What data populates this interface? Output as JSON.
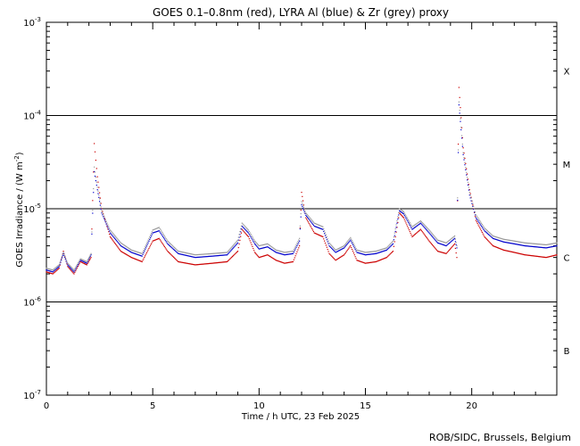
{
  "chart_data": {
    "type": "scatter",
    "title": "GOES 0.1–0.8nm (red), LYRA Al (blue) & Zr (grey) proxy",
    "xlabel": "Time / h UTC, 23 Feb 2025",
    "ylabel": "GOES Irradiance / (W m",
    "ylabel_sup": "-2",
    "ylabel_close": ")",
    "xlim": [
      0,
      24
    ],
    "ylim": [
      1e-07,
      0.001
    ],
    "yscale": "log",
    "x_ticks": [
      {
        "value": 0,
        "label": "0"
      },
      {
        "value": 5,
        "label": "5"
      },
      {
        "value": 10,
        "label": "10"
      },
      {
        "value": 15,
        "label": "15"
      },
      {
        "value": 20,
        "label": "20"
      }
    ],
    "y_ticks": [
      {
        "value": 0.001,
        "base": "10",
        "exp": "-3"
      },
      {
        "value": 0.0001,
        "base": "10",
        "exp": "-4"
      },
      {
        "value": 1e-05,
        "base": "10",
        "exp": "-5"
      },
      {
        "value": 1e-06,
        "base": "10",
        "exp": "-6"
      },
      {
        "value": 1e-07,
        "base": "10",
        "exp": "-7"
      }
    ],
    "flare_class_lines": [
      0.0001,
      1e-05,
      1e-06
    ],
    "flare_classes": [
      {
        "label": "X",
        "value": 0.0003
      },
      {
        "label": "M",
        "value": 3e-05
      },
      {
        "label": "C",
        "value": 3e-06
      },
      {
        "label": "B",
        "value": 3e-07
      }
    ],
    "series": [
      {
        "color": "#cc0000",
        "x": [
          0,
          0.3,
          0.6,
          0.8,
          1.0,
          1.3,
          1.6,
          1.9,
          2.1,
          2.25,
          2.4,
          2.6,
          3.0,
          3.5,
          4.0,
          4.5,
          5.0,
          5.3,
          5.7,
          6.2,
          7.0,
          7.8,
          8.5,
          9.0,
          9.2,
          9.5,
          9.8,
          10.0,
          10.4,
          10.8,
          11.2,
          11.6,
          11.9,
          12.0,
          12.2,
          12.6,
          13.0,
          13.3,
          13.6,
          14.0,
          14.3,
          14.6,
          15.0,
          15.5,
          16.0,
          16.3,
          16.6,
          16.8,
          17.2,
          17.6,
          18.0,
          18.4,
          18.8,
          19.2,
          19.3,
          19.4,
          19.6,
          19.9,
          20.2,
          20.6,
          21.0,
          21.5,
          22.0,
          22.5,
          23.0,
          23.5,
          24.0
        ],
        "y": [
          2.1e-06,
          2e-06,
          2.3e-06,
          3.5e-06,
          2.4e-06,
          2e-06,
          2.7e-06,
          2.5e-06,
          3e-06,
          5e-05,
          2.2e-05,
          1e-05,
          5e-06,
          3.5e-06,
          3e-06,
          2.7e-06,
          4.5e-06,
          4.8e-06,
          3.5e-06,
          2.7e-06,
          2.5e-06,
          2.6e-06,
          2.7e-06,
          3.5e-06,
          6e-06,
          5e-06,
          3.4e-06,
          3e-06,
          3.2e-06,
          2.8e-06,
          2.6e-06,
          2.7e-06,
          4e-06,
          1.5e-05,
          8e-06,
          5.5e-06,
          5e-06,
          3.3e-06,
          2.8e-06,
          3.2e-06,
          4e-06,
          2.8e-06,
          2.6e-06,
          2.7e-06,
          3e-06,
          3.5e-06,
          9e-06,
          8e-06,
          5e-06,
          6e-06,
          4.5e-06,
          3.5e-06,
          3.3e-06,
          4.2e-06,
          3e-06,
          0.0002,
          4.5e-05,
          1.6e-05,
          7.5e-06,
          5e-06,
          4e-06,
          3.6e-06,
          3.4e-06,
          3.2e-06,
          3.1e-06,
          3e-06,
          3.2e-06
        ]
      },
      {
        "color": "#0000cc",
        "x": [
          0,
          0.3,
          0.6,
          0.8,
          1.0,
          1.3,
          1.6,
          1.9,
          2.1,
          2.25,
          2.4,
          2.6,
          3.0,
          3.5,
          4.0,
          4.5,
          5.0,
          5.3,
          5.7,
          6.2,
          7.0,
          7.8,
          8.5,
          9.0,
          9.2,
          9.5,
          9.8,
          10.0,
          10.4,
          10.8,
          11.2,
          11.6,
          11.9,
          12.0,
          12.2,
          12.6,
          13.0,
          13.3,
          13.6,
          14.0,
          14.3,
          14.6,
          15.0,
          15.5,
          16.0,
          16.3,
          16.6,
          16.8,
          17.2,
          17.6,
          18.0,
          18.4,
          18.8,
          19.2,
          19.3,
          19.4,
          19.6,
          19.9,
          20.2,
          20.6,
          21.0,
          21.5,
          22.0,
          22.5,
          23.0,
          23.5,
          24.0
        ],
        "y": [
          2.2e-06,
          2.1e-06,
          2.4e-06,
          3.3e-06,
          2.5e-06,
          2.1e-06,
          2.8e-06,
          2.6e-06,
          3.2e-06,
          2.5e-05,
          1.6e-05,
          9e-06,
          5.5e-06,
          4e-06,
          3.4e-06,
          3.1e-06,
          5.5e-06,
          5.8e-06,
          4.2e-06,
          3.3e-06,
          3e-06,
          3.1e-06,
          3.2e-06,
          4.3e-06,
          6.5e-06,
          5.5e-06,
          4.2e-06,
          3.7e-06,
          3.9e-06,
          3.4e-06,
          3.2e-06,
          3.3e-06,
          4.5e-06,
          1.1e-05,
          8.5e-06,
          6.5e-06,
          6e-06,
          4e-06,
          3.4e-06,
          3.8e-06,
          4.6e-06,
          3.4e-06,
          3.2e-06,
          3.3e-06,
          3.6e-06,
          4.2e-06,
          9.5e-06,
          8.8e-06,
          6e-06,
          7e-06,
          5.5e-06,
          4.3e-06,
          4e-06,
          4.8e-06,
          3.8e-06,
          0.00013,
          3.8e-05,
          1.4e-05,
          8e-06,
          5.8e-06,
          4.8e-06,
          4.4e-06,
          4.2e-06,
          4e-06,
          3.9e-06,
          3.8e-06,
          4e-06
        ]
      },
      {
        "color": "#999999",
        "x": [
          0,
          0.3,
          0.6,
          0.8,
          1.0,
          1.3,
          1.6,
          1.9,
          2.1,
          2.25,
          2.4,
          2.6,
          3.0,
          3.5,
          4.0,
          4.5,
          5.0,
          5.3,
          5.7,
          6.2,
          7.0,
          7.8,
          8.5,
          9.0,
          9.2,
          9.5,
          9.8,
          10.0,
          10.4,
          10.8,
          11.2,
          11.6,
          11.9,
          12.0,
          12.2,
          12.6,
          13.0,
          13.3,
          13.6,
          14.0,
          14.3,
          14.6,
          15.0,
          15.5,
          16.0,
          16.3,
          16.6,
          16.8,
          17.2,
          17.6,
          18.0,
          18.4,
          18.8,
          19.2,
          19.3,
          19.4,
          19.6,
          19.9,
          20.2,
          20.6,
          21.0,
          21.5,
          22.0,
          22.5,
          23.0,
          23.5,
          24.0
        ],
        "y": [
          2.3e-06,
          2.2e-06,
          2.5e-06,
          3.4e-06,
          2.6e-06,
          2.2e-06,
          2.9e-06,
          2.7e-06,
          3.3e-06,
          2.8e-05,
          1.7e-05,
          9.5e-06,
          5.9e-06,
          4.3e-06,
          3.6e-06,
          3.3e-06,
          5.9e-06,
          6.3e-06,
          4.5e-06,
          3.5e-06,
          3.2e-06,
          3.3e-06,
          3.4e-06,
          4.6e-06,
          7e-06,
          5.9e-06,
          4.5e-06,
          4e-06,
          4.2e-06,
          3.6e-06,
          3.4e-06,
          3.5e-06,
          4.8e-06,
          1.2e-05,
          9e-06,
          7e-06,
          6.4e-06,
          4.3e-06,
          3.6e-06,
          4e-06,
          4.9e-06,
          3.6e-06,
          3.4e-06,
          3.5e-06,
          3.8e-06,
          4.5e-06,
          1e-05,
          9.3e-06,
          6.4e-06,
          7.4e-06,
          5.9e-06,
          4.6e-06,
          4.3e-06,
          5.1e-06,
          4e-06,
          0.00014,
          4e-05,
          1.5e-05,
          8.6e-06,
          6.2e-06,
          5.1e-06,
          4.7e-06,
          4.5e-06,
          4.3e-06,
          4.2e-06,
          4.1e-06,
          4.3e-06
        ]
      }
    ]
  },
  "footer": {
    "credit": "ROB/SIDC, Brussels, Belgium"
  }
}
